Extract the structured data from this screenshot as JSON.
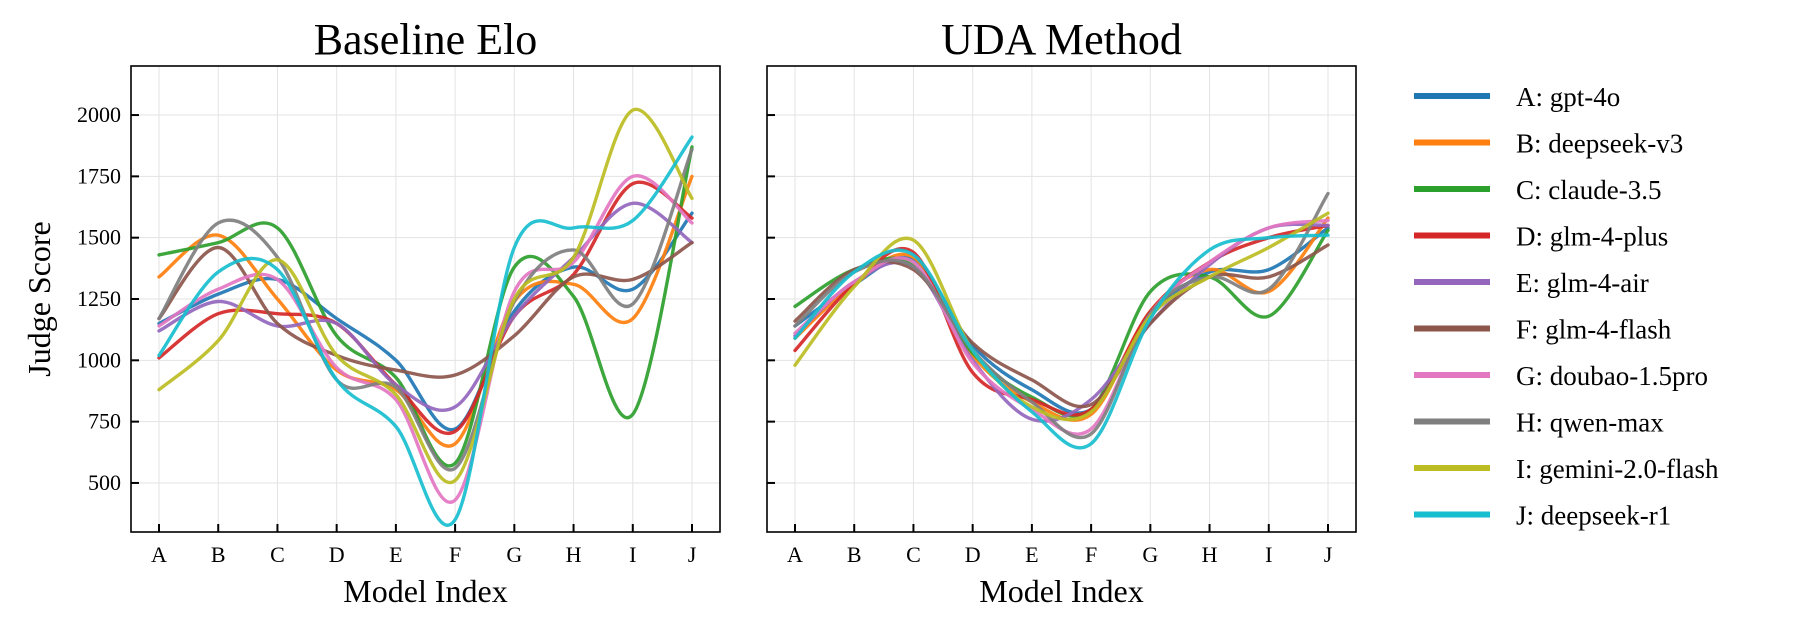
{
  "chart_data": {
    "type": "line",
    "ylabel": "Judge Score",
    "xlabel": "Model Index",
    "categories": [
      "A",
      "B",
      "C",
      "D",
      "E",
      "F",
      "G",
      "H",
      "I",
      "J"
    ],
    "ylim": [
      300,
      2200
    ],
    "yticks": [
      500,
      750,
      1000,
      1250,
      1500,
      1750,
      2000
    ],
    "grid": true,
    "smooth": true,
    "legend_position": "right",
    "legend": [
      {
        "label": "A: gpt-4o",
        "color": "#1f77b4"
      },
      {
        "label": "B: deepseek-v3",
        "color": "#ff7f0e"
      },
      {
        "label": "C: claude-3.5",
        "color": "#2ca02c"
      },
      {
        "label": "D: glm-4-plus",
        "color": "#d62728"
      },
      {
        "label": "E: glm-4-air",
        "color": "#9467bd"
      },
      {
        "label": "F: glm-4-flash",
        "color": "#8c564b"
      },
      {
        "label": "G: doubao-1.5pro",
        "color": "#e377c2"
      },
      {
        "label": "H: qwen-max",
        "color": "#7f7f7f"
      },
      {
        "label": "I: gemini-2.0-flash",
        "color": "#bcbd22"
      },
      {
        "label": "J: deepseek-r1",
        "color": "#17becf"
      }
    ],
    "panels": [
      {
        "title": "Baseline Elo",
        "show_y_tick_labels": true,
        "series": [
          {
            "values": [
              1150,
              1270,
              1330,
              1170,
              1000,
              720,
              1200,
              1380,
              1290,
              1600
            ]
          },
          {
            "values": [
              1340,
              1510,
              1250,
              960,
              880,
              660,
              1240,
              1310,
              1170,
              1750
            ]
          },
          {
            "values": [
              1430,
              1480,
              1540,
              1100,
              930,
              580,
              1380,
              1260,
              780,
              1870
            ]
          },
          {
            "values": [
              1010,
              1190,
              1190,
              1150,
              900,
              710,
              1180,
              1350,
              1720,
              1580
            ]
          },
          {
            "values": [
              1120,
              1240,
              1140,
              1150,
              900,
              810,
              1180,
              1420,
              1640,
              1480
            ]
          },
          {
            "values": [
              1170,
              1460,
              1150,
              1020,
              960,
              940,
              1100,
              1340,
              1330,
              1480
            ]
          },
          {
            "values": [
              1140,
              1290,
              1330,
              970,
              840,
              430,
              1280,
              1400,
              1750,
              1560
            ]
          },
          {
            "values": [
              1170,
              1560,
              1420,
              920,
              890,
              560,
              1240,
              1450,
              1230,
              1860
            ]
          },
          {
            "values": [
              880,
              1080,
              1410,
              1020,
              860,
              510,
              1250,
              1420,
              2020,
              1660
            ]
          },
          {
            "values": [
              1020,
              1360,
              1370,
              920,
              730,
              350,
              1460,
              1540,
              1570,
              1910
            ]
          }
        ]
      },
      {
        "title": "UDA Method",
        "show_y_tick_labels": false,
        "series": [
          {
            "values": [
              1140,
              1310,
              1410,
              1060,
              880,
              800,
              1180,
              1360,
              1370,
              1540
            ]
          },
          {
            "values": [
              1090,
              1310,
              1420,
              1020,
              830,
              780,
              1200,
              1370,
              1280,
              1580
            ]
          },
          {
            "values": [
              1220,
              1370,
              1390,
              1030,
              850,
              800,
              1280,
              1340,
              1180,
              1530
            ]
          },
          {
            "values": [
              1040,
              1310,
              1440,
              950,
              840,
              800,
              1200,
              1400,
              1500,
              1550
            ]
          },
          {
            "values": [
              1100,
              1320,
              1380,
              1000,
              760,
              840,
              1150,
              1390,
              1540,
              1550
            ]
          },
          {
            "values": [
              1160,
              1370,
              1370,
              1070,
              920,
              820,
              1150,
              1340,
              1340,
              1470
            ]
          },
          {
            "values": [
              1110,
              1320,
              1400,
              990,
              800,
              720,
              1190,
              1400,
              1540,
              1570
            ]
          },
          {
            "values": [
              1140,
              1360,
              1380,
              1040,
              830,
              700,
              1190,
              1340,
              1290,
              1680
            ]
          },
          {
            "values": [
              980,
              1300,
              1490,
              1040,
              810,
              790,
              1180,
              1340,
              1460,
              1600
            ]
          },
          {
            "values": [
              1090,
              1360,
              1430,
              1040,
              790,
              660,
              1170,
              1450,
              1500,
              1510
            ]
          }
        ]
      }
    ]
  }
}
